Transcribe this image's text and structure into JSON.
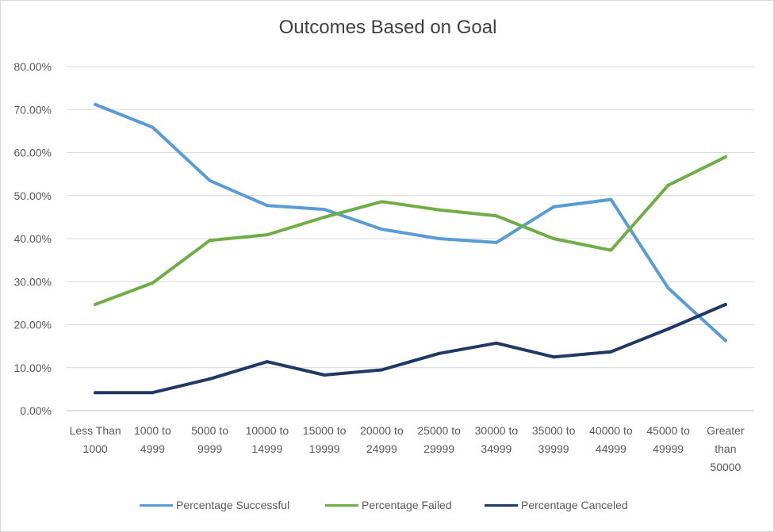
{
  "chart_data": {
    "type": "line",
    "title": "Outcomes Based on Goal",
    "xlabel": "",
    "ylabel": "",
    "ylim": [
      0,
      80
    ],
    "y_ticks": [
      "0.00%",
      "10.00%",
      "20.00%",
      "30.00%",
      "40.00%",
      "50.00%",
      "60.00%",
      "70.00%",
      "80.00%"
    ],
    "categories": [
      "Less Than 1000",
      "1000 to 4999",
      "5000 to 9999",
      "10000 to 14999",
      "15000 to 19999",
      "20000 to 24999",
      "25000 to 29999",
      "30000 to 34999",
      "35000 to 39999",
      "40000 to 44999",
      "45000 to 49999",
      "Greater than 50000"
    ],
    "category_lines": [
      [
        "Less Than",
        "1000"
      ],
      [
        "1000 to",
        "4999"
      ],
      [
        "5000 to",
        "9999"
      ],
      [
        "10000 to",
        "14999"
      ],
      [
        "15000 to",
        "19999"
      ],
      [
        "20000 to",
        "24999"
      ],
      [
        "25000 to",
        "29999"
      ],
      [
        "30000 to",
        "34999"
      ],
      [
        "35000 to",
        "39999"
      ],
      [
        "40000 to",
        "44999"
      ],
      [
        "45000 to",
        "49999"
      ],
      [
        "Greater",
        "than",
        "50000"
      ]
    ],
    "series": [
      {
        "name": "Percentage Successful",
        "color": "#5b9bd5",
        "values": [
          71.2,
          65.9,
          53.5,
          47.7,
          46.8,
          42.2,
          40.0,
          39.1,
          47.4,
          49.1,
          28.5,
          16.3
        ]
      },
      {
        "name": "Percentage Failed",
        "color": "#70ad47",
        "values": [
          24.7,
          29.7,
          39.6,
          40.9,
          45.0,
          48.6,
          46.7,
          45.3,
          40.0,
          37.3,
          52.4,
          59.0
        ]
      },
      {
        "name": "Percentage Canceled",
        "color": "#203864",
        "values": [
          4.2,
          4.2,
          7.4,
          11.4,
          8.3,
          9.5,
          13.3,
          15.7,
          12.5,
          13.7,
          19.0,
          24.7
        ]
      }
    ],
    "grid": true,
    "legend_position": "bottom"
  }
}
